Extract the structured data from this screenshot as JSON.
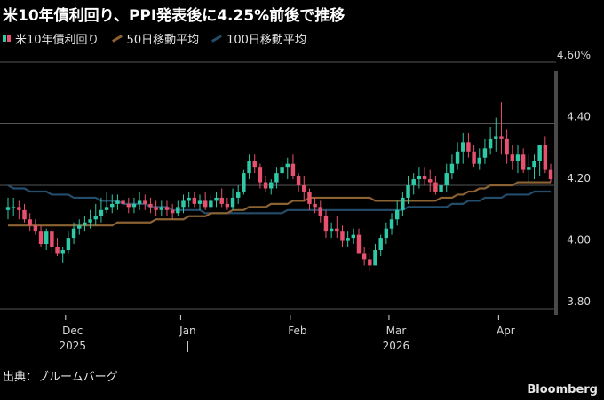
{
  "title": "米10年債利回り、PPI発表後に4.25%前後で推移",
  "legend": {
    "candles": "米10年債利回り",
    "ma50": "50日移動平均",
    "ma100": "100日移動平均"
  },
  "source": "出典：ブルームバーグ",
  "brand": "Bloomberg",
  "colors": {
    "up": "#2ec9a6",
    "down": "#e8516e",
    "ma50": "#8c6233",
    "ma100": "#244d6b",
    "grid": "#555555",
    "axis_text": "#d9d9d9"
  },
  "chart_data": {
    "type": "candlestick",
    "title": "米10年債利回り、PPI発表後に4.25%前後で推移",
    "y_axis": {
      "position": "right",
      "range": [
        3.78,
        4.6
      ],
      "ticks": [
        "4.60%",
        "4.40",
        "4.20",
        "4.00",
        "3.80"
      ],
      "tick_values": [
        4.6,
        4.4,
        4.2,
        4.0,
        3.8
      ]
    },
    "x_axis": {
      "month_labels": [
        "Dec",
        "Jan",
        "Feb",
        "Mar",
        "Apr"
      ],
      "month_start_index": [
        11,
        32,
        52,
        70,
        90
      ],
      "year_labels": [
        {
          "label": "2025",
          "at_index": 11
        },
        {
          "label": "|",
          "at_index": 32
        },
        {
          "label": "2026",
          "at_index": 70
        }
      ]
    },
    "grid": "horizontal",
    "legend_position": "top-left",
    "series": [
      {
        "name": "米10年債利回り",
        "kind": "ohlc",
        "open": [
          4.12,
          4.13,
          4.13,
          4.12,
          4.09,
          4.07,
          4.05,
          4.01,
          4.05,
          4.0,
          3.98,
          3.99,
          4.03,
          4.06,
          4.07,
          4.08,
          4.09,
          4.1,
          4.12,
          4.13,
          4.14,
          4.15,
          4.14,
          4.13,
          4.14,
          4.15,
          4.14,
          4.13,
          4.12,
          4.13,
          4.12,
          4.11,
          4.13,
          4.15,
          4.16,
          4.14,
          4.15,
          4.13,
          4.15,
          4.16,
          4.14,
          4.13,
          4.16,
          4.18,
          4.24,
          4.28,
          4.26,
          4.21,
          4.19,
          4.21,
          4.24,
          4.26,
          4.27,
          4.23,
          4.2,
          4.18,
          4.14,
          4.13,
          4.1,
          4.05,
          4.06,
          4.05,
          4.02,
          4.03,
          4.04,
          3.98,
          3.96,
          3.94,
          3.99,
          4.03,
          4.06,
          4.09,
          4.12,
          4.16,
          4.2,
          4.22,
          4.23,
          4.22,
          4.21,
          4.18,
          4.2,
          4.24,
          4.27,
          4.31,
          4.34,
          4.31,
          4.27,
          4.29,
          4.32,
          4.35,
          4.36,
          4.35,
          4.3,
          4.28,
          4.3,
          4.25,
          4.26,
          4.28,
          4.33,
          4.25
        ],
        "high": [
          4.16,
          4.16,
          4.15,
          4.14,
          4.11,
          4.09,
          4.07,
          4.06,
          4.06,
          4.03,
          4.0,
          4.05,
          4.08,
          4.09,
          4.1,
          4.12,
          4.14,
          4.16,
          4.18,
          4.17,
          4.17,
          4.16,
          4.16,
          4.16,
          4.18,
          4.17,
          4.16,
          4.15,
          4.15,
          4.15,
          4.14,
          4.15,
          4.17,
          4.18,
          4.18,
          4.17,
          4.18,
          4.17,
          4.18,
          4.19,
          4.16,
          4.19,
          4.2,
          4.25,
          4.3,
          4.3,
          4.27,
          4.23,
          4.22,
          4.26,
          4.28,
          4.29,
          4.3,
          4.24,
          4.23,
          4.19,
          4.16,
          4.15,
          4.12,
          4.08,
          4.1,
          4.07,
          4.05,
          4.06,
          4.06,
          4.0,
          3.98,
          4.01,
          4.04,
          4.08,
          4.11,
          4.15,
          4.18,
          4.23,
          4.24,
          4.26,
          4.26,
          4.25,
          4.23,
          4.22,
          4.27,
          4.3,
          4.34,
          4.37,
          4.37,
          4.33,
          4.32,
          4.35,
          4.39,
          4.42,
          4.47,
          4.38,
          4.33,
          4.33,
          4.32,
          4.3,
          4.3,
          4.33,
          4.36,
          4.27
        ],
        "low": [
          4.09,
          4.1,
          4.09,
          4.08,
          4.05,
          4.04,
          4.0,
          3.99,
          3.98,
          3.97,
          3.95,
          3.98,
          4.01,
          4.04,
          4.05,
          4.06,
          4.07,
          4.08,
          4.11,
          4.11,
          4.12,
          4.12,
          4.11,
          4.11,
          4.12,
          4.12,
          4.11,
          4.1,
          4.1,
          4.1,
          4.09,
          4.1,
          4.11,
          4.13,
          4.13,
          4.12,
          4.12,
          4.12,
          4.13,
          4.13,
          4.12,
          4.12,
          4.14,
          4.17,
          4.22,
          4.24,
          4.19,
          4.18,
          4.17,
          4.19,
          4.22,
          4.22,
          4.22,
          4.18,
          4.15,
          4.12,
          4.11,
          4.08,
          4.03,
          4.03,
          4.03,
          4.0,
          4.0,
          4.01,
          3.98,
          3.94,
          3.92,
          3.94,
          3.97,
          4.01,
          4.04,
          4.07,
          4.1,
          4.14,
          4.17,
          4.19,
          4.2,
          4.18,
          4.17,
          4.17,
          4.18,
          4.22,
          4.25,
          4.27,
          4.29,
          4.26,
          4.25,
          4.27,
          4.3,
          4.31,
          4.3,
          4.27,
          4.25,
          4.24,
          4.24,
          4.21,
          4.22,
          4.23,
          4.24,
          4.21
        ],
        "close": [
          4.13,
          4.13,
          4.12,
          4.09,
          4.07,
          4.05,
          4.01,
          4.05,
          4.0,
          3.98,
          3.99,
          4.03,
          4.06,
          4.07,
          4.08,
          4.09,
          4.1,
          4.12,
          4.13,
          4.14,
          4.15,
          4.14,
          4.13,
          4.14,
          4.15,
          4.14,
          4.13,
          4.12,
          4.13,
          4.12,
          4.11,
          4.13,
          4.15,
          4.16,
          4.14,
          4.15,
          4.13,
          4.15,
          4.16,
          4.14,
          4.13,
          4.16,
          4.18,
          4.24,
          4.28,
          4.26,
          4.21,
          4.19,
          4.21,
          4.24,
          4.26,
          4.27,
          4.23,
          4.2,
          4.18,
          4.14,
          4.13,
          4.1,
          4.05,
          4.06,
          4.05,
          4.02,
          4.03,
          4.04,
          3.98,
          3.96,
          3.94,
          3.99,
          4.03,
          4.06,
          4.09,
          4.12,
          4.16,
          4.2,
          4.22,
          4.23,
          4.22,
          4.21,
          4.18,
          4.2,
          4.24,
          4.27,
          4.31,
          4.34,
          4.31,
          4.27,
          4.29,
          4.32,
          4.35,
          4.36,
          4.35,
          4.3,
          4.28,
          4.3,
          4.25,
          4.26,
          4.28,
          4.33,
          4.25,
          4.22
        ]
      },
      {
        "name": "50日移動平均",
        "kind": "line",
        "values": [
          4.07,
          4.07,
          4.07,
          4.07,
          4.07,
          4.07,
          4.07,
          4.07,
          4.07,
          4.07,
          4.07,
          4.07,
          4.07,
          4.07,
          4.07,
          4.07,
          4.07,
          4.07,
          4.07,
          4.07,
          4.08,
          4.08,
          4.08,
          4.08,
          4.08,
          4.08,
          4.08,
          4.09,
          4.09,
          4.09,
          4.09,
          4.09,
          4.09,
          4.1,
          4.1,
          4.1,
          4.1,
          4.11,
          4.11,
          4.11,
          4.11,
          4.12,
          4.12,
          4.12,
          4.13,
          4.13,
          4.13,
          4.13,
          4.14,
          4.14,
          4.14,
          4.14,
          4.15,
          4.15,
          4.15,
          4.16,
          4.16,
          4.16,
          4.16,
          4.16,
          4.16,
          4.16,
          4.16,
          4.16,
          4.16,
          4.16,
          4.16,
          4.15,
          4.15,
          4.15,
          4.15,
          4.15,
          4.15,
          4.15,
          4.15,
          4.15,
          4.15,
          4.15,
          4.15,
          4.16,
          4.16,
          4.16,
          4.17,
          4.17,
          4.18,
          4.18,
          4.19,
          4.19,
          4.2,
          4.2,
          4.2,
          4.2,
          4.2,
          4.21,
          4.21,
          4.21,
          4.21,
          4.21,
          4.21,
          4.21
        ]
      },
      {
        "name": "100日移動平均",
        "kind": "line",
        "values": [
          4.2,
          4.19,
          4.19,
          4.19,
          4.18,
          4.18,
          4.18,
          4.18,
          4.17,
          4.17,
          4.17,
          4.17,
          4.16,
          4.16,
          4.16,
          4.16,
          4.16,
          4.15,
          4.15,
          4.15,
          4.15,
          4.14,
          4.14,
          4.14,
          4.14,
          4.14,
          4.13,
          4.13,
          4.13,
          4.13,
          4.12,
          4.12,
          4.12,
          4.12,
          4.12,
          4.12,
          4.11,
          4.11,
          4.11,
          4.11,
          4.11,
          4.11,
          4.11,
          4.11,
          4.11,
          4.11,
          4.11,
          4.11,
          4.11,
          4.11,
          4.11,
          4.12,
          4.12,
          4.12,
          4.12,
          4.12,
          4.12,
          4.12,
          4.12,
          4.12,
          4.12,
          4.12,
          4.12,
          4.12,
          4.12,
          4.12,
          4.12,
          4.12,
          4.12,
          4.12,
          4.12,
          4.12,
          4.12,
          4.13,
          4.13,
          4.13,
          4.13,
          4.13,
          4.13,
          4.13,
          4.13,
          4.14,
          4.14,
          4.14,
          4.15,
          4.15,
          4.15,
          4.16,
          4.16,
          4.16,
          4.16,
          4.17,
          4.17,
          4.17,
          4.17,
          4.17,
          4.18,
          4.18,
          4.18,
          4.18
        ]
      }
    ]
  }
}
